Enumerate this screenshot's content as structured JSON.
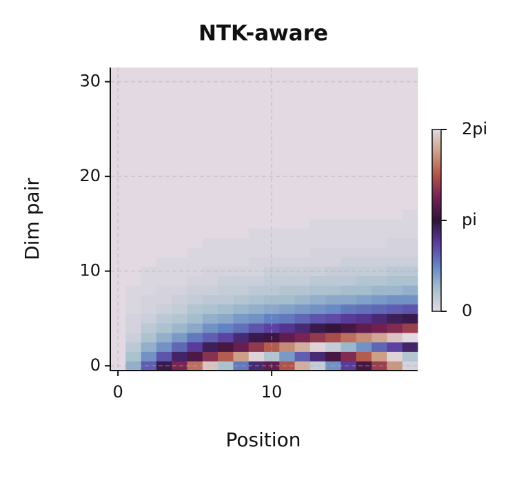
{
  "chart_data": {
    "type": "heatmap",
    "title": "NTK-aware",
    "xlabel": "Position",
    "ylabel": "Dim pair",
    "colormap": "twilight",
    "grid": true,
    "x": [
      0,
      1,
      2,
      3,
      4,
      5,
      6,
      7,
      8,
      9,
      10,
      11,
      12,
      13,
      14,
      15,
      16,
      17,
      18,
      19
    ],
    "y": [
      0,
      1,
      2,
      3,
      4,
      5,
      6,
      7,
      8,
      9,
      10,
      11,
      12,
      13,
      14,
      15,
      16,
      17,
      18,
      19,
      20,
      21,
      22,
      23,
      24,
      25,
      26,
      27,
      28,
      29,
      30,
      31
    ],
    "xlim": [
      -0.5,
      19.5
    ],
    "xticks": [
      0,
      10
    ],
    "ylim": [
      -0.5,
      31.5
    ],
    "yticks": [
      0,
      10,
      20,
      30
    ],
    "zlim": [
      0,
      6.2832
    ],
    "zticks": [
      0,
      {
        "value": 3.1416,
        "label": "pi"
      },
      {
        "value": 6.2832,
        "label": "2pi"
      }
    ],
    "z": [
      [
        0,
        1,
        2,
        3,
        4,
        5,
        6,
        0.7,
        1.7,
        2.7,
        3.7,
        4.7,
        5.7,
        0.4,
        1.4,
        2.4,
        3.4,
        4.4,
        5.4,
        0.2
      ],
      [
        0,
        0.7,
        1.4,
        2.1,
        2.8,
        3.5,
        4.2,
        4.8,
        5.5,
        6.2,
        0.6,
        1.3,
        2,
        2.7,
        3.4,
        4.1,
        4.8,
        5.5,
        6.2,
        0.6
      ],
      [
        0,
        0.5,
        1,
        1.4,
        1.9,
        2.4,
        2.9,
        3.4,
        3.8,
        4.3,
        4.8,
        5.3,
        5.7,
        6.2,
        0.4,
        0.9,
        1.4,
        1.9,
        2.3,
        2.8
      ],
      [
        0,
        0.3,
        0.7,
        1,
        1.3,
        1.7,
        2,
        2.3,
        2.7,
        3,
        3.3,
        3.7,
        4,
        4.3,
        4.6,
        5,
        5.3,
        5.6,
        6,
        0
      ],
      [
        0,
        0.2,
        0.5,
        0.7,
        0.9,
        1.1,
        1.4,
        1.6,
        1.8,
        2.1,
        2.3,
        2.5,
        2.7,
        3,
        3.2,
        3.4,
        3.7,
        3.9,
        4.1,
        4.4
      ],
      [
        0,
        0.2,
        0.3,
        0.5,
        0.6,
        0.8,
        1,
        1.1,
        1.3,
        1.4,
        1.6,
        1.7,
        1.9,
        2.1,
        2.2,
        2.4,
        2.5,
        2.7,
        2.9,
        3
      ],
      [
        0,
        0.1,
        0.2,
        0.3,
        0.4,
        0.6,
        0.7,
        0.8,
        0.9,
        1,
        1.1,
        1.2,
        1.3,
        1.4,
        1.5,
        1.7,
        1.8,
        1.9,
        2,
        2.1
      ],
      [
        0,
        0.1,
        0.2,
        0.2,
        0.3,
        0.4,
        0.5,
        0.5,
        0.6,
        0.7,
        0.8,
        0.8,
        0.9,
        1,
        1.1,
        1.1,
        1.2,
        1.3,
        1.4,
        1.4
      ],
      [
        0,
        0.1,
        0.1,
        0.2,
        0.2,
        0.3,
        0.3,
        0.4,
        0.4,
        0.5,
        0.5,
        0.6,
        0.6,
        0.7,
        0.7,
        0.8,
        0.8,
        0.9,
        0.9,
        1
      ],
      [
        0,
        0,
        0.1,
        0.1,
        0.1,
        0.2,
        0.2,
        0.3,
        0.3,
        0.3,
        0.4,
        0.4,
        0.4,
        0.5,
        0.5,
        0.5,
        0.6,
        0.6,
        0.7,
        0.7
      ],
      [
        0,
        0,
        0.1,
        0.1,
        0.1,
        0.1,
        0.2,
        0.2,
        0.2,
        0.2,
        0.3,
        0.3,
        0.3,
        0.3,
        0.4,
        0.4,
        0.4,
        0.4,
        0.5,
        0.5
      ],
      [
        0,
        0,
        0,
        0.1,
        0.1,
        0.1,
        0.1,
        0.1,
        0.1,
        0.2,
        0.2,
        0.2,
        0.2,
        0.2,
        0.2,
        0.3,
        0.3,
        0.3,
        0.3,
        0.3
      ],
      [
        0,
        0,
        0,
        0,
        0,
        0.1,
        0.1,
        0.1,
        0.1,
        0.1,
        0.1,
        0.1,
        0.1,
        0.2,
        0.2,
        0.2,
        0.2,
        0.2,
        0.2,
        0.2
      ],
      [
        0,
        0,
        0,
        0,
        0,
        0,
        0.1,
        0.1,
        0.1,
        0.1,
        0.1,
        0.1,
        0.1,
        0.1,
        0.1,
        0.1,
        0.1,
        0.1,
        0.2,
        0.2
      ],
      [
        0,
        0,
        0,
        0,
        0,
        0,
        0,
        0,
        0,
        0.1,
        0.1,
        0.1,
        0.1,
        0.1,
        0.1,
        0.1,
        0.1,
        0.1,
        0.1,
        0.1
      ],
      [
        0,
        0,
        0,
        0,
        0,
        0,
        0,
        0,
        0,
        0,
        0,
        0,
        0,
        0.1,
        0.1,
        0.1,
        0.1,
        0.1,
        0.1,
        0.1
      ],
      [
        0,
        0,
        0,
        0,
        0,
        0,
        0,
        0,
        0,
        0,
        0,
        0,
        0,
        0,
        0,
        0,
        0,
        0,
        0,
        0.1
      ],
      [
        0,
        0,
        0,
        0,
        0,
        0,
        0,
        0,
        0,
        0,
        0,
        0,
        0,
        0,
        0,
        0,
        0,
        0,
        0,
        0
      ],
      [
        0,
        0,
        0,
        0,
        0,
        0,
        0,
        0,
        0,
        0,
        0,
        0,
        0,
        0,
        0,
        0,
        0,
        0,
        0,
        0
      ],
      [
        0,
        0,
        0,
        0,
        0,
        0,
        0,
        0,
        0,
        0,
        0,
        0,
        0,
        0,
        0,
        0,
        0,
        0,
        0,
        0
      ],
      [
        0,
        0,
        0,
        0,
        0,
        0,
        0,
        0,
        0,
        0,
        0,
        0,
        0,
        0,
        0,
        0,
        0,
        0,
        0,
        0
      ],
      [
        0,
        0,
        0,
        0,
        0,
        0,
        0,
        0,
        0,
        0,
        0,
        0,
        0,
        0,
        0,
        0,
        0,
        0,
        0,
        0
      ],
      [
        0,
        0,
        0,
        0,
        0,
        0,
        0,
        0,
        0,
        0,
        0,
        0,
        0,
        0,
        0,
        0,
        0,
        0,
        0,
        0
      ],
      [
        0,
        0,
        0,
        0,
        0,
        0,
        0,
        0,
        0,
        0,
        0,
        0,
        0,
        0,
        0,
        0,
        0,
        0,
        0,
        0
      ],
      [
        0,
        0,
        0,
        0,
        0,
        0,
        0,
        0,
        0,
        0,
        0,
        0,
        0,
        0,
        0,
        0,
        0,
        0,
        0,
        0
      ],
      [
        0,
        0,
        0,
        0,
        0,
        0,
        0,
        0,
        0,
        0,
        0,
        0,
        0,
        0,
        0,
        0,
        0,
        0,
        0,
        0
      ],
      [
        0,
        0,
        0,
        0,
        0,
        0,
        0,
        0,
        0,
        0,
        0,
        0,
        0,
        0,
        0,
        0,
        0,
        0,
        0,
        0
      ],
      [
        0,
        0,
        0,
        0,
        0,
        0,
        0,
        0,
        0,
        0,
        0,
        0,
        0,
        0,
        0,
        0,
        0,
        0,
        0,
        0
      ],
      [
        0,
        0,
        0,
        0,
        0,
        0,
        0,
        0,
        0,
        0,
        0,
        0,
        0,
        0,
        0,
        0,
        0,
        0,
        0,
        0
      ],
      [
        0,
        0,
        0,
        0,
        0,
        0,
        0,
        0,
        0,
        0,
        0,
        0,
        0,
        0,
        0,
        0,
        0,
        0,
        0,
        0
      ],
      [
        0,
        0,
        0,
        0,
        0,
        0,
        0,
        0,
        0,
        0,
        0,
        0,
        0,
        0,
        0,
        0,
        0,
        0,
        0,
        0
      ],
      [
        0,
        0,
        0,
        0,
        0,
        0,
        0,
        0,
        0,
        0,
        0,
        0,
        0,
        0,
        0,
        0,
        0,
        0,
        0,
        0
      ]
    ]
  }
}
